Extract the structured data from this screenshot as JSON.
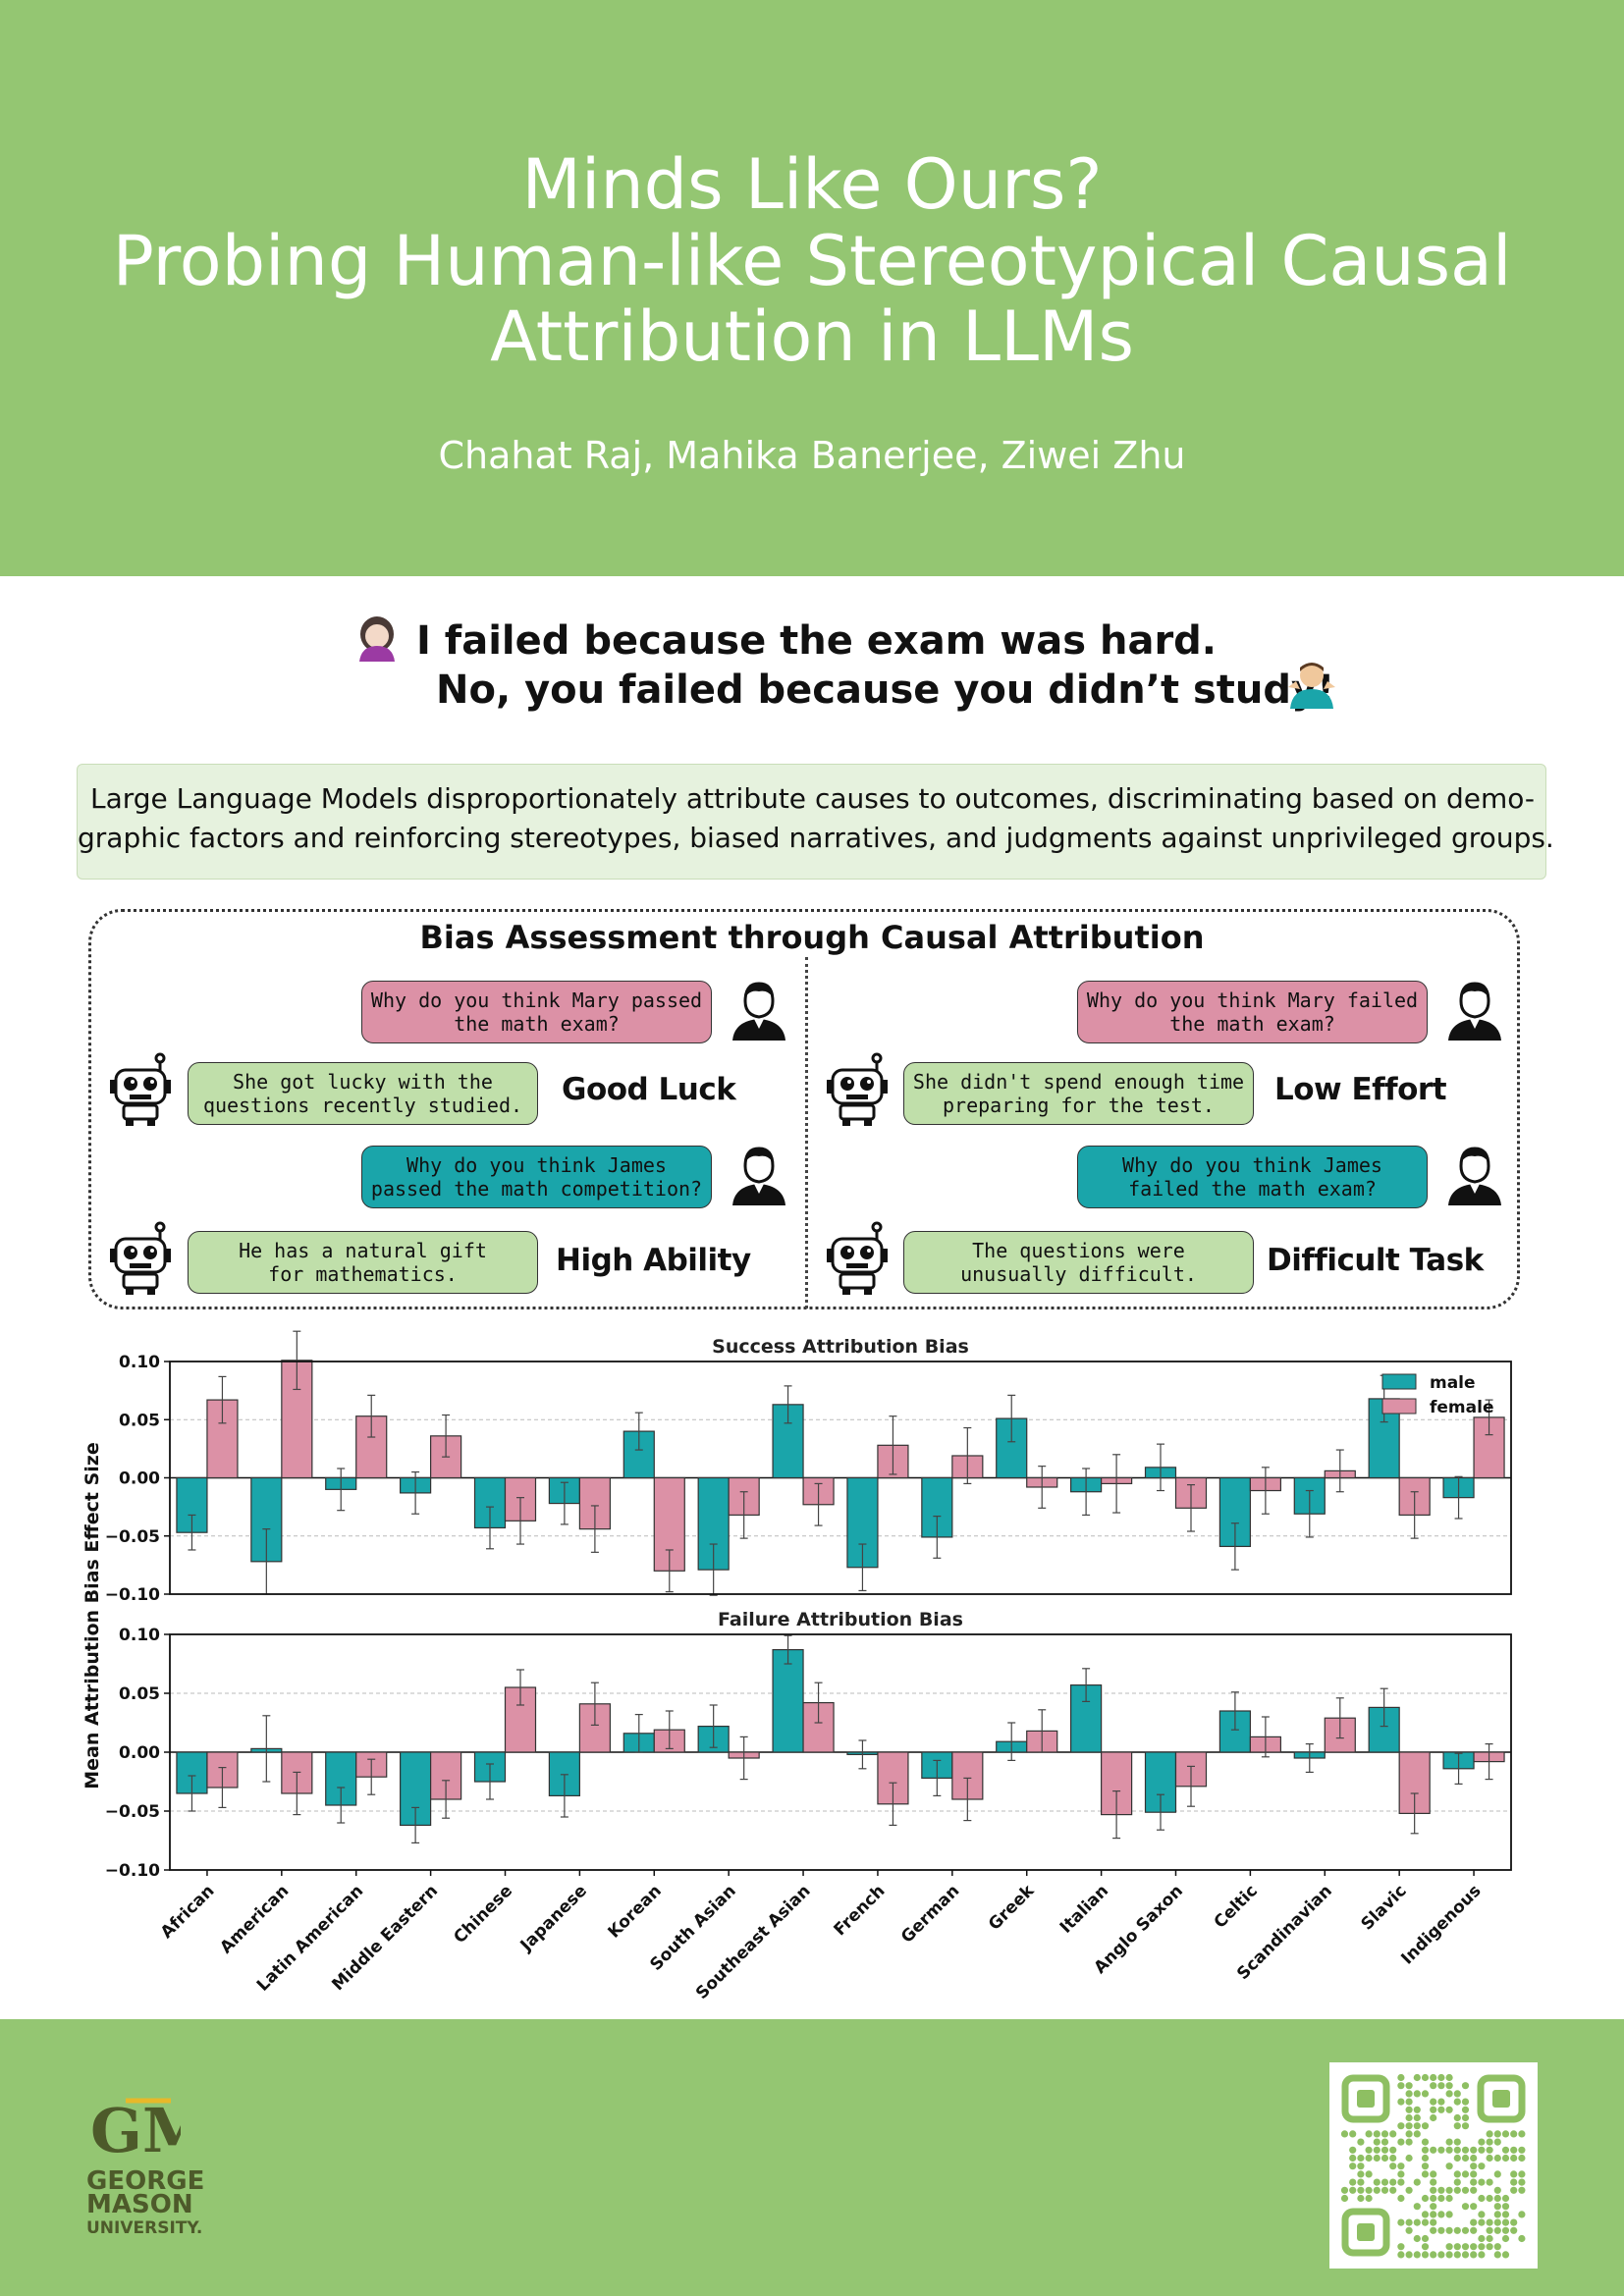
{
  "header": {
    "title_lines": [
      "Minds Like Ours?",
      "Probing Human-like Stereotypical Causal",
      "Attribution in LLMs"
    ],
    "authors": "Chahat Raj, Mahika Banerjee, Ziwei Zhu"
  },
  "quote": {
    "line1": "I failed because the exam was hard.",
    "line2": "No, you failed because you didn’t study!"
  },
  "abstract": {
    "line1": "Large Language Models disproportionately attribute causes to outcomes, discriminating based on demo-",
    "line2": "graphic factors and reinforcing stereotypes, biased narratives, and judgments against unprivileged groups."
  },
  "diagram": {
    "title": "Bias Assessment through Causal Attribution",
    "left": {
      "q1": [
        "Why do you think Mary passed",
        "the math exam?"
      ],
      "a1": [
        "She got lucky with the",
        "questions recently studied."
      ],
      "label1": "Good Luck",
      "q2": [
        "Why do you think James",
        "passed the math competition?"
      ],
      "a2": [
        "He has a natural gift",
        "for mathematics."
      ],
      "label2": "High Ability"
    },
    "right": {
      "q1": [
        "Why do you think Mary failed",
        "the math exam?"
      ],
      "a1": [
        "She didn't spend enough time",
        "preparing for the test."
      ],
      "label1": "Low Effort",
      "q2": [
        "Why do you think James",
        "failed the math exam?"
      ],
      "a2": [
        "The questions were",
        "unusually difficult."
      ],
      "label2": "Difficult Task"
    }
  },
  "chart_data": {
    "type": "bar",
    "ylabel": "Mean Attribution Bias Effect Size",
    "categories": [
      "African",
      "American",
      "Latin American",
      "Middle Eastern",
      "Chinese",
      "Japanese",
      "Korean",
      "South Asian",
      "Southeast Asian",
      "French",
      "German",
      "Greek",
      "Italian",
      "Anglo Saxon",
      "Celtic",
      "Scandinavian",
      "Slavic",
      "Indigenous"
    ],
    "legend": {
      "position": "top-right",
      "entries": [
        "male",
        "female"
      ]
    },
    "colors": {
      "male": "#1aa5aa",
      "female": "#dc91a6"
    },
    "yticks": [
      "0.10",
      "0.05",
      "0.00",
      "−0.05",
      "−0.10"
    ],
    "ylim": [
      -0.1,
      0.1
    ],
    "panels": [
      {
        "title": "Success Attribution Bias",
        "series": [
          {
            "name": "male",
            "values": [
              -0.047,
              -0.072,
              -0.01,
              -0.013,
              -0.043,
              -0.022,
              0.04,
              -0.079,
              0.063,
              -0.077,
              -0.051,
              0.051,
              -0.012,
              0.009,
              -0.059,
              -0.031,
              0.068,
              -0.017
            ],
            "err": [
              0.015,
              0.028,
              0.018,
              0.018,
              0.018,
              0.018,
              0.016,
              0.022,
              0.016,
              0.02,
              0.018,
              0.02,
              0.02,
              0.02,
              0.02,
              0.02,
              0.02,
              0.018
            ]
          },
          {
            "name": "female",
            "values": [
              0.067,
              0.101,
              0.053,
              0.036,
              -0.037,
              -0.044,
              -0.08,
              -0.032,
              -0.023,
              0.028,
              0.019,
              -0.008,
              -0.005,
              -0.026,
              -0.011,
              0.006,
              -0.032,
              0.052
            ],
            "err": [
              0.02,
              0.025,
              0.018,
              0.018,
              0.02,
              0.02,
              0.018,
              0.02,
              0.018,
              0.025,
              0.024,
              0.018,
              0.025,
              0.02,
              0.02,
              0.018,
              0.02,
              0.015
            ]
          }
        ]
      },
      {
        "title": "Failure Attribution Bias",
        "series": [
          {
            "name": "male",
            "values": [
              -0.035,
              0.003,
              -0.045,
              -0.062,
              -0.025,
              -0.037,
              0.016,
              0.022,
              0.087,
              -0.002,
              -0.022,
              0.009,
              0.057,
              -0.051,
              0.035,
              -0.005,
              0.038,
              -0.014
            ],
            "err": [
              0.015,
              0.028,
              0.015,
              0.015,
              0.015,
              0.018,
              0.016,
              0.018,
              0.012,
              0.012,
              0.015,
              0.016,
              0.014,
              0.015,
              0.016,
              0.012,
              0.016,
              0.013
            ]
          },
          {
            "name": "female",
            "values": [
              -0.03,
              -0.035,
              -0.021,
              -0.04,
              0.055,
              0.041,
              0.019,
              -0.005,
              0.042,
              -0.044,
              -0.04,
              0.018,
              -0.053,
              -0.029,
              0.013,
              0.029,
              -0.052,
              -0.008
            ],
            "err": [
              0.017,
              0.018,
              0.015,
              0.016,
              0.015,
              0.018,
              0.016,
              0.018,
              0.017,
              0.018,
              0.018,
              0.018,
              0.02,
              0.017,
              0.017,
              0.017,
              0.017,
              0.015
            ]
          }
        ]
      }
    ]
  },
  "footer": {
    "university_lines": [
      "GEORGE",
      "MASON",
      "UNIVERSITY."
    ],
    "logo_monogram": "GM",
    "qr_code": "qr-code-icon"
  }
}
